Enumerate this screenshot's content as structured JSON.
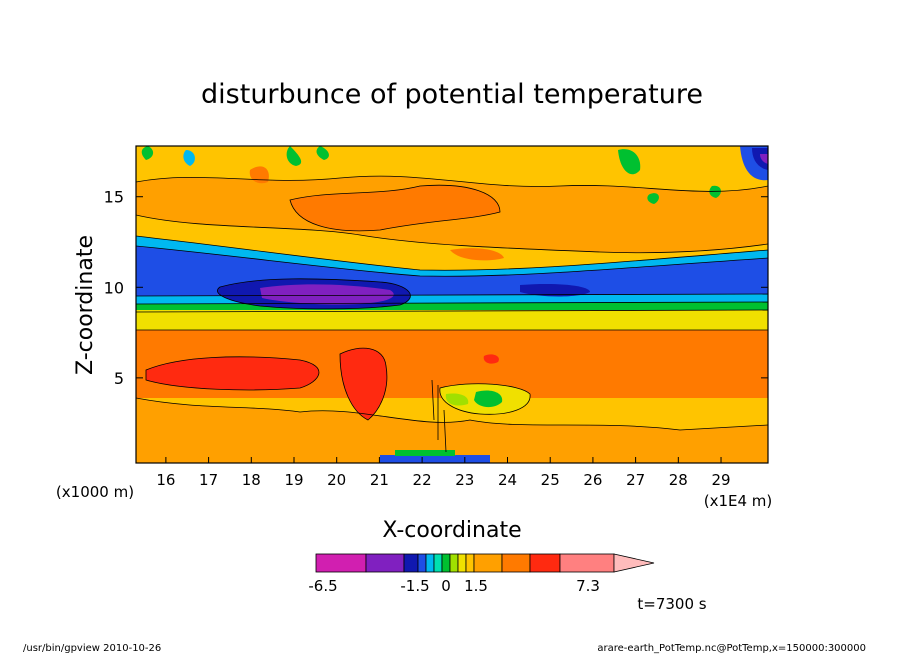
{
  "chart_data": {
    "type": "heatmap",
    "title": "disturbunce of potential temperature",
    "xlabel": "X-coordinate",
    "ylabel": "Z-coordinate",
    "x_unit_left": "(x1000 m)",
    "x_unit_right": "(x1E4 m)",
    "xlim": [
      15.3,
      30.1
    ],
    "ylim": [
      0.3,
      17.8
    ],
    "x_ticks": [
      16,
      17,
      18,
      19,
      20,
      21,
      22,
      23,
      24,
      25,
      26,
      27,
      28,
      29
    ],
    "y_ticks": [
      5,
      10,
      15
    ],
    "time_label": "t=7300 s",
    "colorbar": {
      "colors": [
        "#d11fb0",
        "#8020c0",
        "#1018b0",
        "#1e4ee6",
        "#00b8f0",
        "#00e0b0",
        "#00c030",
        "#a0e000",
        "#f0e000",
        "#ffc400",
        "#ffa000",
        "#ff7a00",
        "#ff2a10",
        "#ff8080"
      ],
      "arrow_color": "#ffbcbc",
      "labels": [
        "-6.5",
        "-1.5",
        "0",
        "1.5",
        "7.3"
      ],
      "label_values": [
        -6.5,
        -1.5,
        0,
        1.5,
        7.3
      ]
    },
    "bands": [
      {
        "z_range": [
          0.3,
          4.0
        ],
        "color": "#ffc400",
        "note": "near-ground mixed yellow/orange with noisy contours"
      },
      {
        "z_range": [
          4.0,
          7.5
        ],
        "color": "#ff7a00"
      },
      {
        "z_range": [
          7.5,
          9.3
        ],
        "color": "#ffc400"
      },
      {
        "z_range": [
          9.3,
          11.5
        ],
        "color": "#1e4ee6"
      },
      {
        "z_range": [
          11.5,
          17.8
        ],
        "color": "#ffa000"
      }
    ],
    "features": [
      {
        "label": "minimum",
        "x": [
          18.5,
          21.5
        ],
        "z": [
          9.4,
          10.2
        ],
        "color": "#8020c0"
      },
      {
        "label": "maximum",
        "x": [
          15.8,
          19.5
        ],
        "z": [
          4.8,
          6.0
        ],
        "color": "#ff2a10"
      },
      {
        "label": "maximum",
        "x": [
          20.0,
          21.8
        ],
        "z": [
          4.0,
          6.5
        ],
        "color": "#ff2a10"
      },
      {
        "label": "green patch",
        "x": [
          22.5,
          23.8
        ],
        "z": [
          2.7,
          3.8
        ],
        "color": "#00c030"
      }
    ]
  },
  "footer": {
    "left": "/usr/bin/gpview   2010-10-26",
    "right": "arare-earth_PotTemp.nc@PotTemp,x=150000:300000"
  }
}
